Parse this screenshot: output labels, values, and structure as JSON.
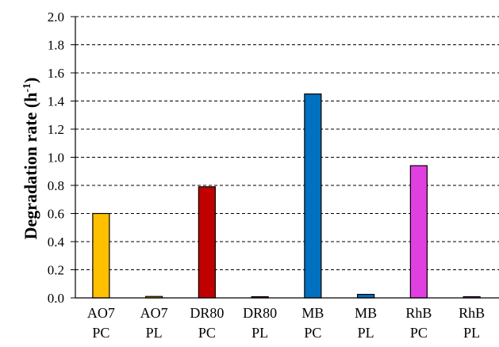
{
  "chart_data": {
    "type": "bar",
    "categories": [
      [
        "AO7",
        "PC"
      ],
      [
        "AO7",
        "PL"
      ],
      [
        "DR80",
        "PC"
      ],
      [
        "DR80",
        "PL"
      ],
      [
        "MB",
        "PC"
      ],
      [
        "MB",
        "PL"
      ],
      [
        "RhB",
        "PC"
      ],
      [
        "RhB",
        "PL"
      ]
    ],
    "values": [
      0.6,
      0.01,
      0.79,
      0.005,
      1.45,
      0.025,
      0.94,
      0.008
    ],
    "bar_colors": [
      "#FFC000",
      "#FFC000",
      "#C00000",
      "#C00000",
      "#0070C0",
      "#0070C0",
      "#E040E0",
      "#E040E0"
    ],
    "ylabel": {
      "main": "Degradation rate (h",
      "sup": "-1",
      "end": ")"
    },
    "xlabel": "",
    "ylim": [
      0,
      2.0
    ],
    "yticks": [
      "0.0",
      "0.2",
      "0.4",
      "0.6",
      "0.8",
      "1.0",
      "1.2",
      "1.4",
      "1.6",
      "1.8",
      "2.0"
    ],
    "grid": "horizontal-dashed",
    "legend": "none"
  }
}
